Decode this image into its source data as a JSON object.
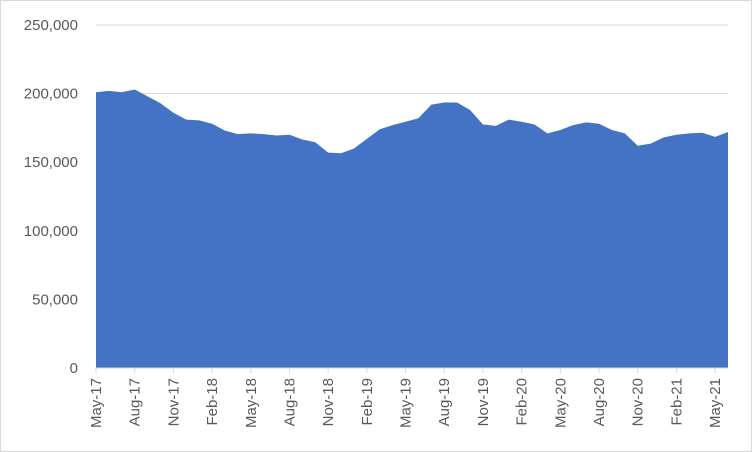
{
  "chart_data": {
    "type": "area",
    "title": "",
    "xlabel": "",
    "ylabel": "",
    "ylim": [
      0,
      250000
    ],
    "yticks": [
      0,
      50000,
      100000,
      150000,
      200000,
      250000
    ],
    "ytick_labels": [
      "0",
      "50,000",
      "100,000",
      "150,000",
      "200,000",
      "250,000"
    ],
    "grid": "horizontal",
    "legend": "none",
    "fill_color": "#4472C4",
    "x": [
      "May-17",
      "Jun-17",
      "Jul-17",
      "Aug-17",
      "Sep-17",
      "Oct-17",
      "Nov-17",
      "Dec-17",
      "Jan-18",
      "Feb-18",
      "Mar-18",
      "Apr-18",
      "May-18",
      "Jun-18",
      "Jul-18",
      "Aug-18",
      "Sep-18",
      "Oct-18",
      "Nov-18",
      "Dec-18",
      "Jan-19",
      "Feb-19",
      "Mar-19",
      "Apr-19",
      "May-19",
      "Jun-19",
      "Jul-19",
      "Aug-19",
      "Sep-19",
      "Oct-19",
      "Nov-19",
      "Dec-19",
      "Jan-20",
      "Feb-20",
      "Mar-20",
      "Apr-20",
      "May-20",
      "Jun-20",
      "Jul-20",
      "Aug-20",
      "Sep-20",
      "Oct-20",
      "Nov-20",
      "Dec-20",
      "Jan-21",
      "Feb-21",
      "Mar-21",
      "Apr-21",
      "May-21",
      "Jun-21"
    ],
    "values": [
      201000,
      202000,
      201000,
      203000,
      198000,
      193000,
      186000,
      181000,
      180500,
      178000,
      173000,
      170500,
      171000,
      170500,
      169500,
      170000,
      166500,
      164500,
      157000,
      156500,
      160000,
      167000,
      174000,
      177000,
      179500,
      182000,
      192000,
      193500,
      193500,
      188000,
      177500,
      176500,
      181000,
      179500,
      177500,
      171000,
      173500,
      177000,
      179000,
      178000,
      173500,
      171000,
      162000,
      163500,
      168000,
      170000,
      171000,
      171500,
      168500,
      172000
    ],
    "xtick_labels": [
      "May-17",
      "Aug-17",
      "Nov-17",
      "Feb-18",
      "May-18",
      "Aug-18",
      "Nov-18",
      "Feb-19",
      "May-19",
      "Aug-19",
      "Nov-19",
      "Feb-20",
      "May-20",
      "Aug-20",
      "Nov-20",
      "Feb-21",
      "May-21"
    ]
  }
}
